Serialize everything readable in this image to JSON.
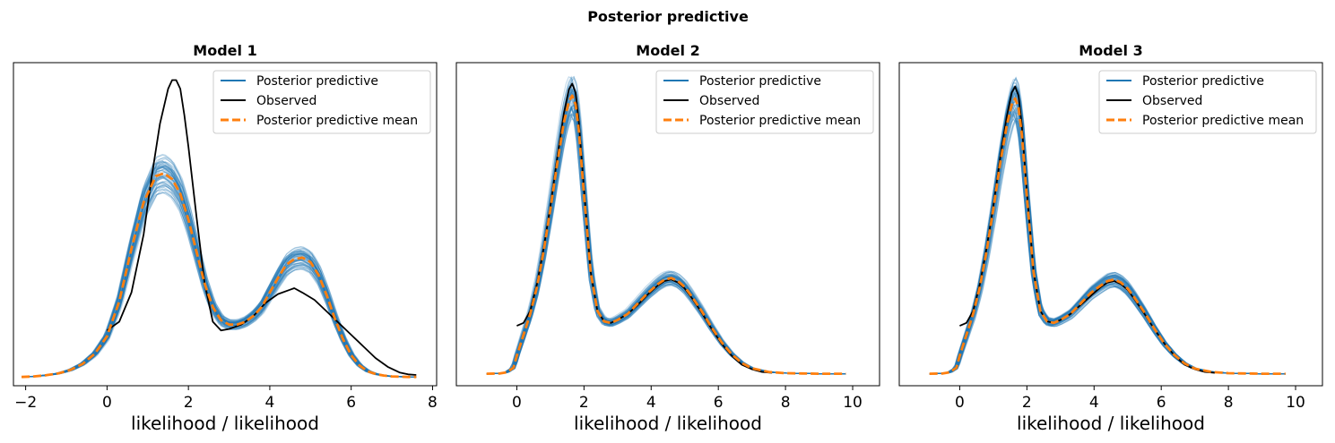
{
  "figure": {
    "title": "Posterior predictive"
  },
  "colors": {
    "posterior_predictive": "#1f77b4",
    "observed": "#000000",
    "posterior_predictive_mean": "#ff7f0e"
  },
  "chart_data": [
    {
      "type": "line",
      "title": "Model 1",
      "xlabel": "likelihood / likelihood",
      "ylabel": "",
      "xlim": [
        -2.3,
        8.1
      ],
      "ylim": [
        -0.03,
        1.08
      ],
      "xticks": [
        "−2",
        "0",
        "2",
        "4",
        "6",
        "8"
      ],
      "xtick_values": [
        -2,
        0,
        2,
        4,
        6,
        8
      ],
      "y_ticks_shown": false,
      "legend": {
        "placement": "upper right",
        "entries": [
          "Posterior predictive",
          "Observed",
          "Posterior predictive mean"
        ]
      },
      "series": [
        {
          "name": "Observed",
          "x": [
            0.0,
            0.3,
            0.6,
            0.9,
            1.1,
            1.3,
            1.5,
            1.6,
            1.7,
            1.8,
            1.9,
            2.0,
            2.2,
            2.4,
            2.6,
            2.8,
            3.0,
            3.3,
            3.6,
            3.9,
            4.2,
            4.5,
            4.6,
            4.8,
            5.1,
            5.4,
            5.7,
            6.0,
            6.3,
            6.6,
            6.9,
            7.2,
            7.4,
            7.6
          ],
          "y": [
            0.16,
            0.19,
            0.29,
            0.49,
            0.69,
            0.87,
            0.99,
            1.02,
            1.02,
            0.99,
            0.9,
            0.79,
            0.55,
            0.32,
            0.19,
            0.16,
            0.165,
            0.18,
            0.21,
            0.255,
            0.285,
            0.3,
            0.305,
            0.29,
            0.265,
            0.225,
            0.185,
            0.145,
            0.105,
            0.065,
            0.035,
            0.015,
            0.009,
            0.007
          ]
        },
        {
          "name": "Posterior predictive mean",
          "x": [
            -2.1,
            -1.8,
            -1.5,
            -1.2,
            -0.9,
            -0.6,
            -0.3,
            0.0,
            0.3,
            0.6,
            0.9,
            1.2,
            1.4,
            1.6,
            1.8,
            2.0,
            2.2,
            2.4,
            2.6,
            2.8,
            3.0,
            3.2,
            3.4,
            3.6,
            3.8,
            4.0,
            4.2,
            4.4,
            4.6,
            4.8,
            5.0,
            5.2,
            5.4,
            5.6,
            5.8,
            6.0,
            6.2,
            6.4,
            6.6,
            6.8,
            7.0,
            7.2,
            7.4,
            7.6
          ],
          "y": [
            0.0,
            0.002,
            0.006,
            0.012,
            0.024,
            0.045,
            0.08,
            0.14,
            0.26,
            0.44,
            0.6,
            0.69,
            0.7,
            0.68,
            0.63,
            0.54,
            0.43,
            0.32,
            0.24,
            0.195,
            0.18,
            0.18,
            0.19,
            0.21,
            0.24,
            0.29,
            0.34,
            0.385,
            0.405,
            0.41,
            0.395,
            0.35,
            0.28,
            0.2,
            0.13,
            0.075,
            0.04,
            0.02,
            0.01,
            0.005,
            0.002,
            0.001,
            0.0,
            0.0
          ]
        }
      ],
      "posterior_band_halfwidth": 0.03
    },
    {
      "type": "line",
      "title": "Model 2",
      "xlabel": "likelihood / likelihood",
      "ylabel": "",
      "xlim": [
        -1.8,
        10.8
      ],
      "ylim": [
        -0.04,
        1.04
      ],
      "xticks": [
        "0",
        "2",
        "4",
        "6",
        "8",
        "10"
      ],
      "xtick_values": [
        0,
        2,
        4,
        6,
        8,
        10
      ],
      "y_ticks_shown": false,
      "legend": {
        "placement": "upper right",
        "entries": [
          "Posterior predictive",
          "Observed",
          "Posterior predictive mean"
        ]
      },
      "series": [
        {
          "name": "Observed",
          "x": [
            0.0,
            0.2,
            0.4,
            0.6,
            0.8,
            1.0,
            1.2,
            1.4,
            1.55,
            1.65,
            1.75,
            1.85,
            2.0,
            2.2,
            2.4,
            2.6,
            2.8,
            3.0,
            3.3,
            3.6,
            3.9,
            4.2,
            4.4,
            4.6,
            4.8,
            5.0,
            5.2,
            5.5,
            5.8,
            6.1,
            6.4,
            6.7,
            7.0,
            7.3,
            7.6
          ],
          "y": [
            0.16,
            0.17,
            0.21,
            0.3,
            0.42,
            0.56,
            0.72,
            0.87,
            0.95,
            0.97,
            0.94,
            0.84,
            0.62,
            0.34,
            0.21,
            0.175,
            0.17,
            0.18,
            0.2,
            0.23,
            0.265,
            0.295,
            0.31,
            0.315,
            0.305,
            0.285,
            0.255,
            0.205,
            0.15,
            0.1,
            0.06,
            0.03,
            0.015,
            0.006,
            0.003
          ]
        },
        {
          "name": "Posterior predictive mean",
          "x": [
            -0.9,
            -0.5,
            -0.3,
            -0.1,
            0.0,
            0.2,
            0.4,
            0.6,
            0.8,
            1.0,
            1.2,
            1.4,
            1.55,
            1.65,
            1.75,
            1.85,
            2.0,
            2.2,
            2.4,
            2.6,
            2.8,
            3.0,
            3.3,
            3.6,
            3.9,
            4.2,
            4.4,
            4.6,
            4.8,
            5.0,
            5.2,
            5.5,
            5.8,
            6.1,
            6.4,
            6.7,
            7.0,
            7.5,
            8.0,
            8.5,
            9.0,
            9.5,
            9.8
          ],
          "y": [
            0.0,
            0.001,
            0.005,
            0.02,
            0.06,
            0.13,
            0.2,
            0.29,
            0.41,
            0.55,
            0.7,
            0.84,
            0.91,
            0.93,
            0.9,
            0.81,
            0.6,
            0.34,
            0.21,
            0.175,
            0.17,
            0.18,
            0.2,
            0.235,
            0.27,
            0.3,
            0.315,
            0.32,
            0.31,
            0.29,
            0.26,
            0.21,
            0.155,
            0.105,
            0.065,
            0.036,
            0.018,
            0.006,
            0.002,
            0.001,
            0.0,
            0.0,
            0.0
          ]
        }
      ],
      "posterior_band_halfwidth": 0.025
    },
    {
      "type": "line",
      "title": "Model 3",
      "xlabel": "likelihood / likelihood",
      "ylabel": "",
      "xlim": [
        -1.8,
        10.8
      ],
      "ylim": [
        -0.04,
        1.04
      ],
      "xticks": [
        "0",
        "2",
        "4",
        "6",
        "8",
        "10"
      ],
      "xtick_values": [
        0,
        2,
        4,
        6,
        8,
        10
      ],
      "y_ticks_shown": false,
      "legend": {
        "placement": "upper right",
        "entries": [
          "Posterior predictive",
          "Observed",
          "Posterior predictive mean"
        ]
      },
      "series": [
        {
          "name": "Observed",
          "x": [
            0.0,
            0.2,
            0.4,
            0.6,
            0.8,
            1.0,
            1.2,
            1.4,
            1.55,
            1.65,
            1.75,
            1.85,
            2.0,
            2.2,
            2.4,
            2.6,
            2.8,
            3.0,
            3.3,
            3.6,
            3.9,
            4.2,
            4.4,
            4.6,
            4.8,
            5.0,
            5.2,
            5.5,
            5.8,
            6.1,
            6.4,
            6.7,
            7.0,
            7.3,
            7.6
          ],
          "y": [
            0.16,
            0.17,
            0.21,
            0.3,
            0.42,
            0.56,
            0.72,
            0.86,
            0.94,
            0.96,
            0.93,
            0.83,
            0.61,
            0.34,
            0.21,
            0.175,
            0.17,
            0.18,
            0.2,
            0.23,
            0.26,
            0.29,
            0.305,
            0.31,
            0.3,
            0.28,
            0.25,
            0.2,
            0.148,
            0.1,
            0.06,
            0.03,
            0.015,
            0.006,
            0.003
          ]
        },
        {
          "name": "Posterior predictive mean",
          "x": [
            -0.9,
            -0.5,
            -0.3,
            -0.1,
            0.0,
            0.2,
            0.4,
            0.6,
            0.8,
            1.0,
            1.2,
            1.4,
            1.55,
            1.65,
            1.75,
            1.85,
            2.0,
            2.2,
            2.4,
            2.6,
            2.8,
            3.0,
            3.3,
            3.6,
            3.9,
            4.2,
            4.4,
            4.6,
            4.8,
            5.0,
            5.2,
            5.5,
            5.8,
            6.1,
            6.4,
            6.7,
            7.0,
            7.5,
            8.0,
            8.5,
            9.0,
            9.5,
            9.7
          ],
          "y": [
            0.0,
            0.001,
            0.005,
            0.02,
            0.06,
            0.13,
            0.2,
            0.29,
            0.41,
            0.55,
            0.7,
            0.83,
            0.9,
            0.92,
            0.89,
            0.8,
            0.59,
            0.34,
            0.21,
            0.175,
            0.17,
            0.18,
            0.2,
            0.235,
            0.27,
            0.295,
            0.31,
            0.315,
            0.305,
            0.285,
            0.255,
            0.205,
            0.15,
            0.1,
            0.062,
            0.034,
            0.017,
            0.006,
            0.002,
            0.001,
            0.0,
            0.0,
            0.0
          ]
        }
      ],
      "posterior_band_halfwidth": 0.025
    }
  ]
}
